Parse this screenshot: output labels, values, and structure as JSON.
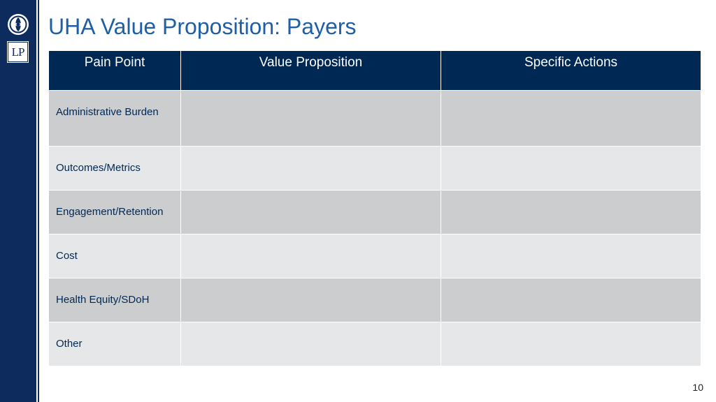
{
  "slide": {
    "title": "UHA Value Proposition: Payers",
    "page_number": "10",
    "logo": {
      "emblem_icon": "circular-emblem-icon",
      "lp_mark": "LP"
    }
  },
  "table": {
    "headers": [
      "Pain Point",
      "Value Proposition",
      "Specific Actions"
    ],
    "rows": [
      {
        "pain_point": "Administrative Burden",
        "value_proposition": "",
        "specific_actions": ""
      },
      {
        "pain_point": "Outcomes/Metrics",
        "value_proposition": "",
        "specific_actions": ""
      },
      {
        "pain_point": "Engagement/Retention",
        "value_proposition": "",
        "specific_actions": ""
      },
      {
        "pain_point": "Cost",
        "value_proposition": "",
        "specific_actions": ""
      },
      {
        "pain_point": "Health Equity/SDoH",
        "value_proposition": "",
        "specific_actions": ""
      },
      {
        "pain_point": "Other",
        "value_proposition": "",
        "specific_actions": ""
      }
    ]
  },
  "colors": {
    "navy": "#0d2b5c",
    "header_fill": "#002855",
    "title_blue": "#1f5fa8",
    "row_dark": "#cbcdcf",
    "row_light": "#e6e7e8"
  }
}
